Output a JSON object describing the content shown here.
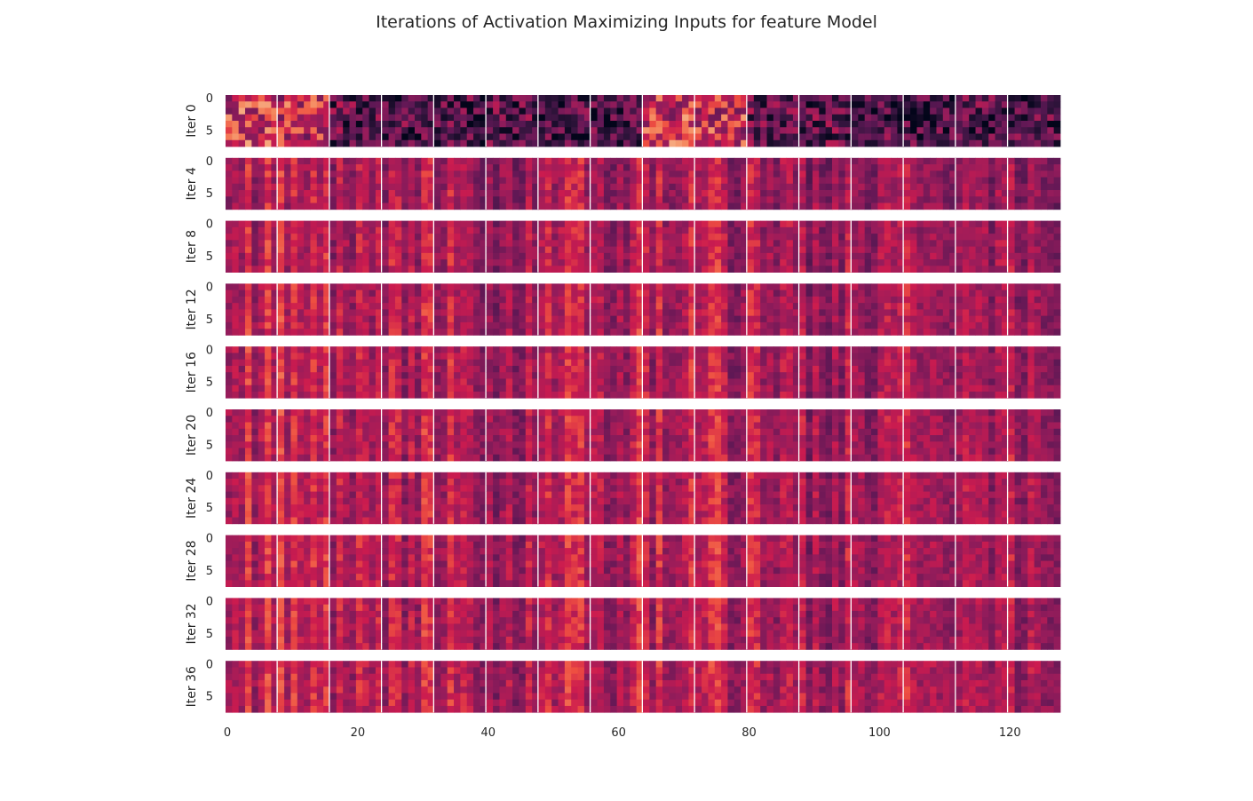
{
  "chart_data": {
    "type": "heatmap",
    "title": "Iterations of Activation Maximizing Inputs for feature Model",
    "rows": [
      "Iter 0",
      "Iter 4",
      "Iter 8",
      "Iter 12",
      "Iter 16",
      "Iter 20",
      "Iter 24",
      "Iter 28",
      "Iter 32",
      "Iter 36"
    ],
    "panel_count": 16,
    "panel_width": 8,
    "panel_height": 8,
    "x_range": [
      0,
      128
    ],
    "x_ticks": [
      0,
      20,
      40,
      60,
      80,
      100,
      120
    ],
    "y_ticks": [
      0,
      5
    ],
    "colormap": "rocket",
    "colorbar": false,
    "grid": false,
    "panel_brightness": [
      [
        0.62,
        0.58,
        0.28,
        0.24,
        0.22,
        0.26,
        0.22,
        0.22,
        0.62,
        0.6,
        0.3,
        0.26,
        0.25,
        0.2,
        0.24,
        0.22
      ],
      [
        0.5,
        0.52,
        0.48,
        0.5,
        0.5,
        0.48,
        0.5,
        0.5,
        0.48,
        0.5,
        0.48,
        0.46,
        0.46,
        0.46,
        0.46,
        0.46
      ],
      [
        0.52,
        0.54,
        0.5,
        0.52,
        0.52,
        0.5,
        0.52,
        0.52,
        0.5,
        0.52,
        0.5,
        0.48,
        0.48,
        0.48,
        0.48,
        0.48
      ],
      [
        0.52,
        0.55,
        0.5,
        0.53,
        0.52,
        0.5,
        0.52,
        0.53,
        0.5,
        0.52,
        0.5,
        0.49,
        0.49,
        0.49,
        0.49,
        0.49
      ],
      [
        0.53,
        0.55,
        0.51,
        0.53,
        0.53,
        0.51,
        0.52,
        0.53,
        0.51,
        0.52,
        0.51,
        0.49,
        0.49,
        0.49,
        0.49,
        0.49
      ],
      [
        0.53,
        0.55,
        0.51,
        0.54,
        0.53,
        0.51,
        0.53,
        0.53,
        0.51,
        0.53,
        0.51,
        0.5,
        0.5,
        0.5,
        0.5,
        0.5
      ],
      [
        0.53,
        0.56,
        0.51,
        0.54,
        0.53,
        0.51,
        0.53,
        0.54,
        0.51,
        0.53,
        0.51,
        0.5,
        0.5,
        0.5,
        0.5,
        0.5
      ],
      [
        0.54,
        0.56,
        0.52,
        0.54,
        0.54,
        0.52,
        0.53,
        0.54,
        0.52,
        0.53,
        0.52,
        0.5,
        0.5,
        0.5,
        0.5,
        0.5
      ],
      [
        0.54,
        0.56,
        0.52,
        0.54,
        0.54,
        0.52,
        0.53,
        0.54,
        0.52,
        0.53,
        0.52,
        0.5,
        0.5,
        0.5,
        0.5,
        0.5
      ],
      [
        0.54,
        0.56,
        0.52,
        0.55,
        0.54,
        0.52,
        0.54,
        0.54,
        0.52,
        0.54,
        0.52,
        0.51,
        0.51,
        0.51,
        0.51,
        0.51
      ]
    ]
  }
}
